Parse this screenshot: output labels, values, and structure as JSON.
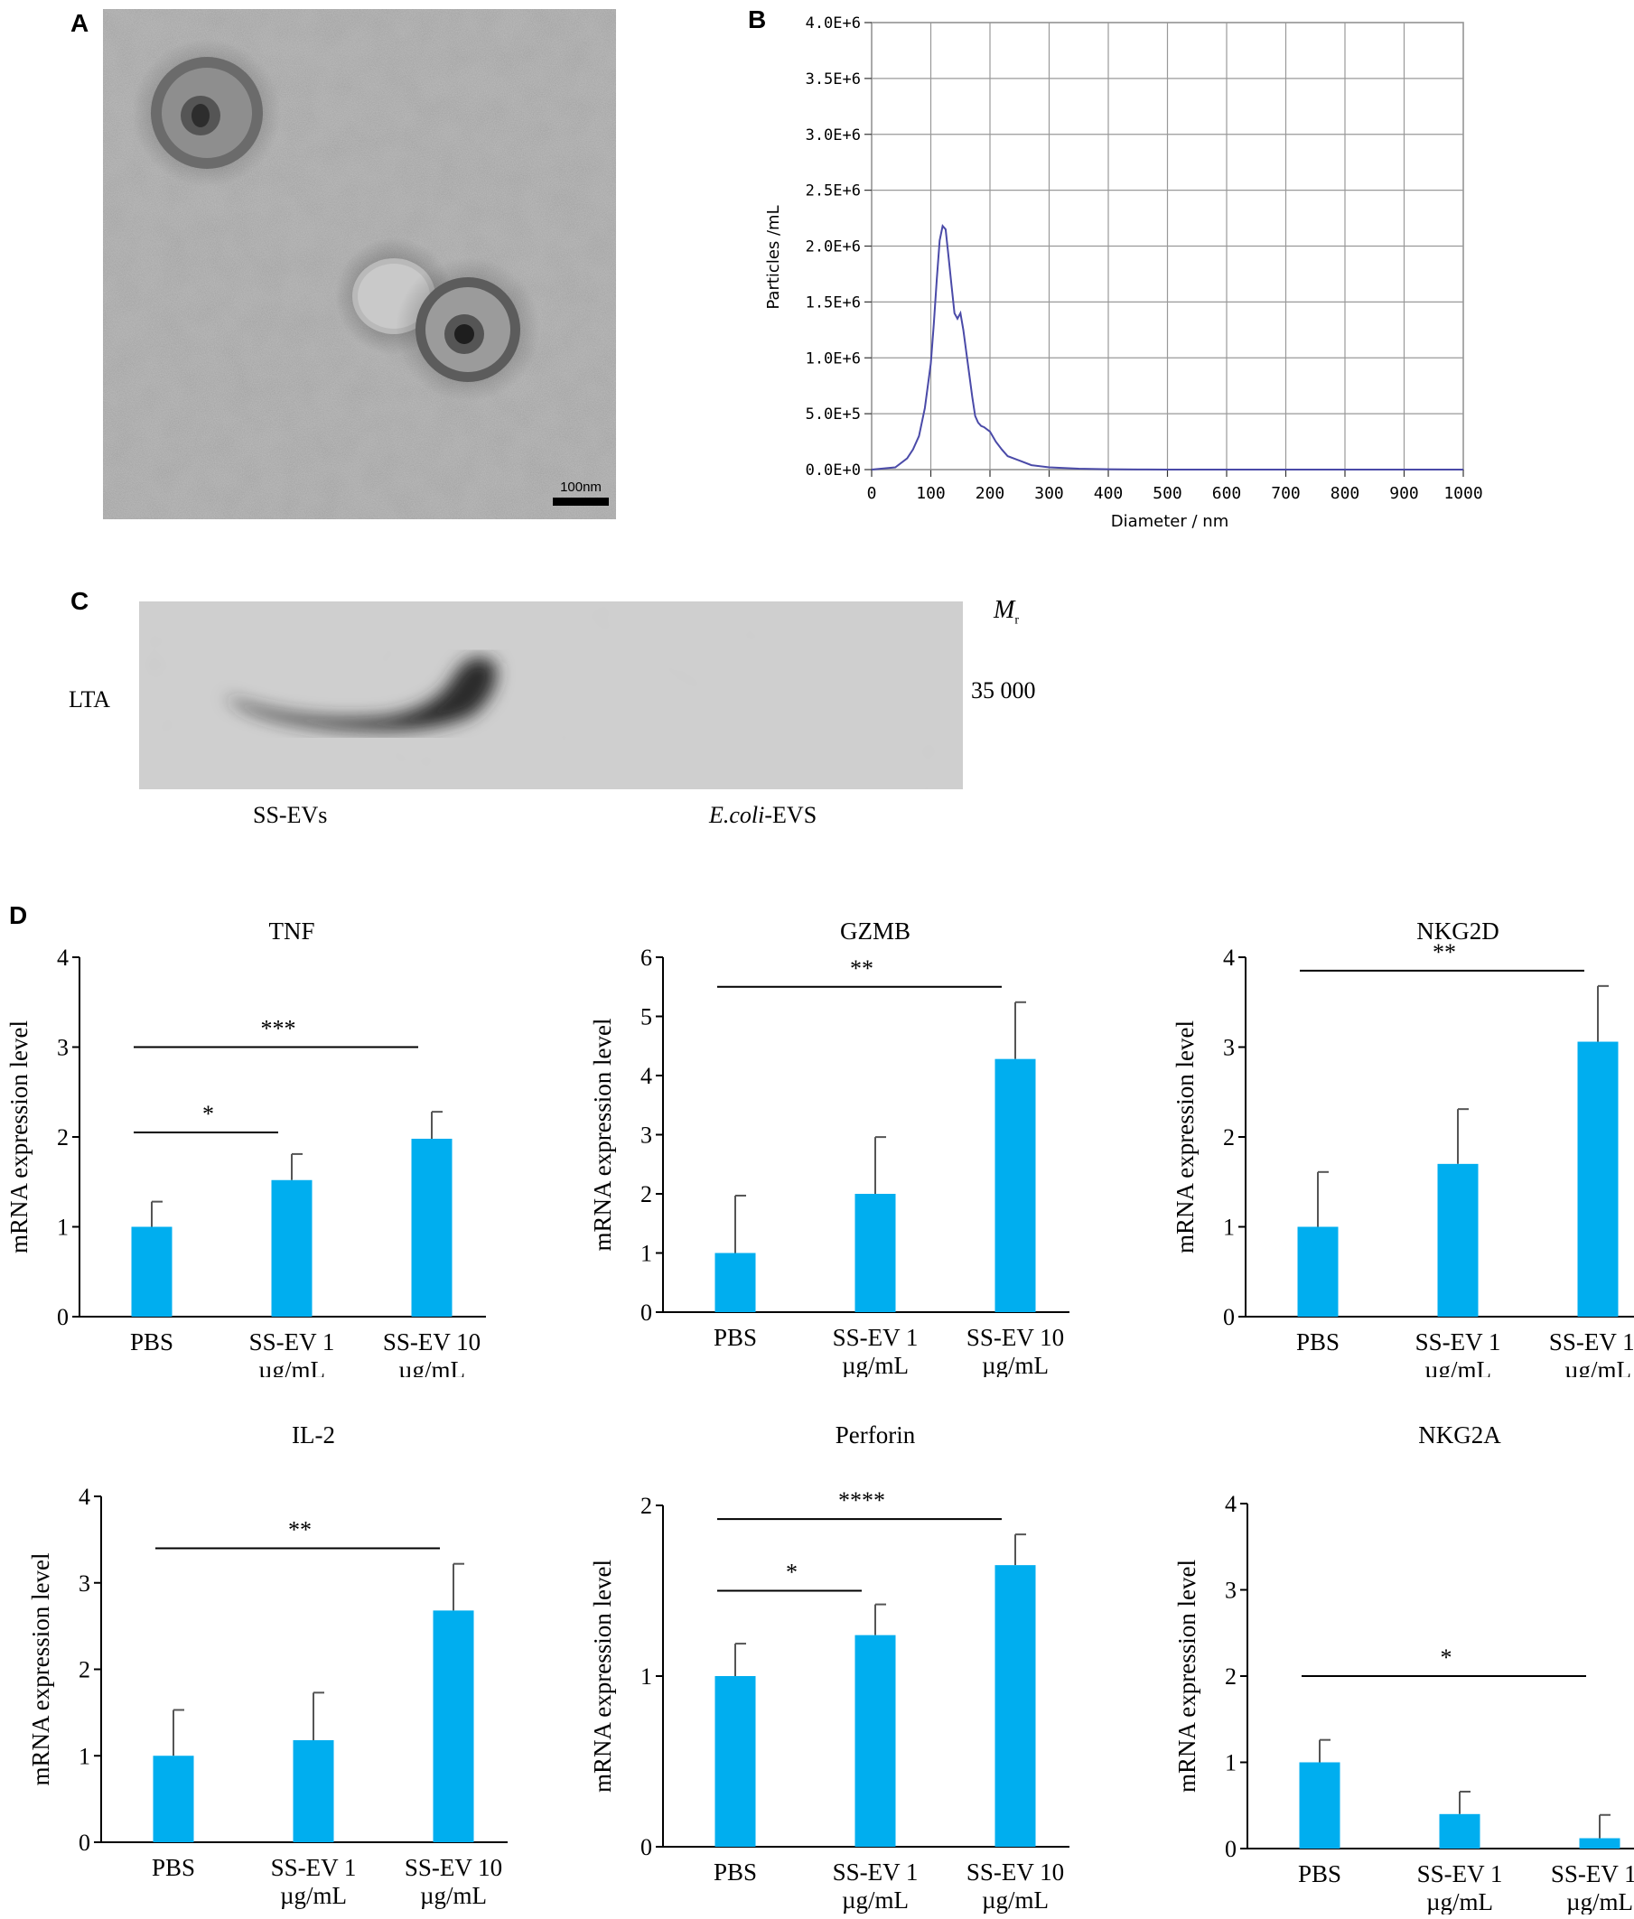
{
  "panels": {
    "A": {
      "letter": "A",
      "scale_bar_label": "100nm"
    },
    "B": {
      "letter": "B",
      "chart_type": "line",
      "x_title": "Diameter / nm",
      "y_title": "Particles /mL",
      "x_ticks": [
        "0",
        "100",
        "200",
        "300",
        "400",
        "500",
        "600",
        "700",
        "800",
        "900",
        "1000"
      ],
      "y_ticks": [
        "0.0E+0",
        "5.0E+5",
        "1.0E+6",
        "1.5E+6",
        "2.0E+6",
        "2.5E+6",
        "3.0E+6",
        "3.5E+6",
        "4.0E+6"
      ],
      "line_color": "#4a4aa8"
    },
    "C": {
      "letter": "C",
      "row_label": "LTA",
      "mr_label": "M",
      "mr_sub": "r",
      "marker": "35 000",
      "lane_labels": [
        "SS-EVs",
        "E.coli",
        "-EVS"
      ]
    },
    "D": {
      "letter": "D",
      "bar_color": "#00aeef",
      "ylabel": "mRNA expression level",
      "categories": [
        [
          "PBS",
          ""
        ],
        [
          "SS-EV 1",
          "µg/mL"
        ],
        [
          "SS-EV 10",
          "µg/mL"
        ]
      ]
    }
  },
  "chart_data": [
    {
      "type": "line",
      "panel": "B",
      "xlabel": "Diameter / nm",
      "ylabel": "Particles /mL",
      "xlim": [
        0,
        1000
      ],
      "ylim": [
        0,
        4000000
      ],
      "grid": true,
      "series": [
        {
          "x": [
            0,
            40,
            60,
            70,
            80,
            90,
            100,
            105,
            110,
            115,
            120,
            125,
            130,
            135,
            140,
            145,
            150,
            155,
            160,
            165,
            170,
            175,
            180,
            185,
            190,
            200,
            210,
            220,
            230,
            250,
            270,
            300,
            350,
            400,
            450,
            500,
            1000
          ],
          "values": [
            0,
            20000,
            100000,
            180000,
            300000,
            550000,
            950000,
            1300000,
            1700000,
            2050000,
            2180000,
            2150000,
            1900000,
            1650000,
            1400000,
            1350000,
            1400000,
            1250000,
            1050000,
            850000,
            650000,
            480000,
            420000,
            390000,
            380000,
            340000,
            250000,
            180000,
            120000,
            80000,
            40000,
            20000,
            8000,
            3000,
            1000,
            0,
            0
          ]
        }
      ]
    },
    {
      "type": "bar",
      "panel": "D",
      "title": "TNF",
      "ylabel": "mRNA expression level",
      "categories": [
        "PBS",
        "SS-EV 1 µg/mL",
        "SS-EV 10 µg/mL"
      ],
      "values": [
        1.0,
        1.52,
        1.98
      ],
      "errors": [
        0.28,
        0.29,
        0.3
      ],
      "ylim": [
        0,
        4
      ],
      "y_ticks": [
        0,
        1,
        2,
        3,
        4
      ],
      "significance": [
        {
          "from": 0,
          "to": 1,
          "label": "*",
          "y": 2.05
        },
        {
          "from": 0,
          "to": 2,
          "label": "***",
          "y": 3.0
        }
      ]
    },
    {
      "type": "bar",
      "panel": "D",
      "title": "GZMB",
      "ylabel": "mRNA expression level",
      "categories": [
        "PBS",
        "SS-EV 1 µg/mL",
        "SS-EV 10 µg/mL"
      ],
      "values": [
        1.0,
        2.0,
        4.28
      ],
      "errors": [
        0.97,
        0.96,
        0.96
      ],
      "ylim": [
        0,
        6
      ],
      "y_ticks": [
        0,
        1,
        2,
        3,
        4,
        5,
        6
      ],
      "significance": [
        {
          "from": 0,
          "to": 2,
          "label": "**",
          "y": 5.5
        }
      ]
    },
    {
      "type": "bar",
      "panel": "D",
      "title": "NKG2D",
      "ylabel": "mRNA expression level",
      "categories": [
        "PBS",
        "SS-EV 1 µg/mL",
        "SS-EV 10 µg/mL"
      ],
      "values": [
        1.0,
        1.7,
        3.06
      ],
      "errors": [
        0.61,
        0.61,
        0.62
      ],
      "ylim": [
        0,
        4
      ],
      "y_ticks": [
        0,
        1,
        2,
        3,
        4
      ],
      "significance": [
        {
          "from": 0,
          "to": 2,
          "label": "**",
          "y": 3.85
        }
      ]
    },
    {
      "type": "bar",
      "panel": "D",
      "title": "IL-2",
      "ylabel": "mRNA expression level",
      "categories": [
        "PBS",
        "SS-EV 1 µg/mL",
        "SS-EV 10 µg/mL"
      ],
      "values": [
        1.0,
        1.18,
        2.68
      ],
      "errors": [
        0.53,
        0.55,
        0.54
      ],
      "ylim": [
        0,
        4
      ],
      "y_ticks": [
        0,
        1,
        2,
        3,
        4
      ],
      "significance": [
        {
          "from": 0,
          "to": 2,
          "label": "**",
          "y": 3.4
        }
      ]
    },
    {
      "type": "bar",
      "panel": "D",
      "title": "Perforin",
      "ylabel": "mRNA expression level",
      "categories": [
        "PBS",
        "SS-EV 1 µg/mL",
        "SS-EV 10 µg/mL"
      ],
      "values": [
        1.0,
        1.24,
        1.65
      ],
      "errors": [
        0.19,
        0.18,
        0.18
      ],
      "ylim": [
        0,
        2
      ],
      "y_ticks": [
        0,
        1,
        2
      ],
      "significance": [
        {
          "from": 0,
          "to": 1,
          "label": "*",
          "y": 1.5
        },
        {
          "from": 0,
          "to": 2,
          "label": "****",
          "y": 1.92
        }
      ]
    },
    {
      "type": "bar",
      "panel": "D",
      "title": "NKG2A",
      "ylabel": "mRNA expression level",
      "categories": [
        "PBS",
        "SS-EV 1 µg/mL",
        "SS-EV 10 µg/mL"
      ],
      "values": [
        1.0,
        0.4,
        0.12
      ],
      "errors": [
        0.26,
        0.26,
        0.27
      ],
      "ylim": [
        0,
        4
      ],
      "y_ticks": [
        0,
        1,
        2,
        3,
        4
      ],
      "significance": [
        {
          "from": 0,
          "to": 2,
          "label": "*",
          "y": 2.0
        }
      ]
    }
  ]
}
